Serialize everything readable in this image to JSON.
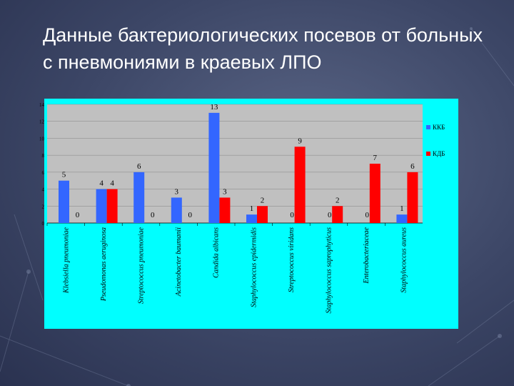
{
  "chart_data": {
    "type": "bar",
    "title": "Данные бактериологических посевов от больных с пневмониями в краевых ЛПО",
    "categories": [
      "Klebsiella pneumoniae",
      "Pseudomonas aeruginosa",
      "Streptococcus pneumoniae",
      "Acinetobacter baumanii",
      "Candida albicans",
      "Staphylococcus epidermidis",
      "Streptococcus viridans",
      "Staphylococcus saprophyticus",
      "Enterobacteriaceae",
      "Staphylococcus aureus"
    ],
    "series": [
      {
        "name": "ККБ",
        "color": "#3366ff",
        "values": [
          5,
          4,
          6,
          3,
          13,
          1,
          0,
          0,
          0,
          1
        ]
      },
      {
        "name": "КДБ",
        "color": "#ff0000",
        "values": [
          0,
          4,
          0,
          0,
          3,
          2,
          9,
          2,
          7,
          6
        ]
      }
    ],
    "ylim": [
      0,
      14
    ],
    "yticks": [
      0,
      2,
      4,
      6,
      8,
      10,
      12,
      14
    ],
    "grid": true,
    "legend": "right"
  }
}
